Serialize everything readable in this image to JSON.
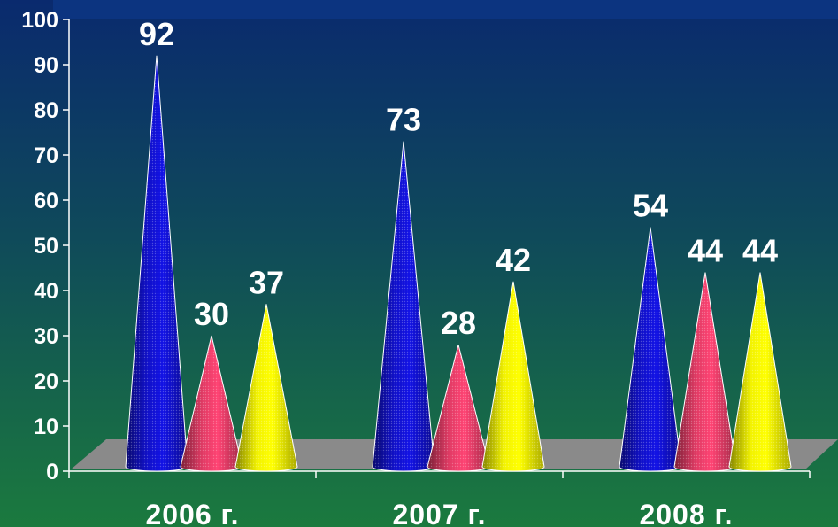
{
  "chart_data": {
    "type": "bar",
    "bar_shape": "cone",
    "categories": [
      "2006 г.",
      "2007 г.",
      "2008 г."
    ],
    "series": [
      {
        "color": "#1010c8",
        "values": [
          92,
          73,
          54
        ]
      },
      {
        "color": "#e03a64",
        "values": [
          30,
          28,
          44
        ]
      },
      {
        "color": "#f2f200",
        "values": [
          37,
          42,
          44
        ]
      }
    ],
    "y_ticks": [
      "0",
      "10",
      "20",
      "30",
      "40",
      "50",
      "60",
      "70",
      "80",
      "90",
      "100"
    ],
    "ylim": [
      0,
      100
    ],
    "grid": false,
    "legend": "none",
    "background_colors": [
      "#0a2a6e",
      "#0f4a5a",
      "#1b7a3e"
    ]
  }
}
